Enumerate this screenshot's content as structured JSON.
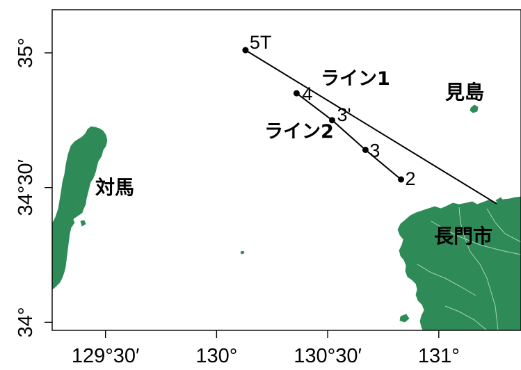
{
  "colors": {
    "land": "#2e8b57",
    "land_border": "#a9d3b6",
    "frame": "#000000",
    "track": "#000000"
  },
  "axes": {
    "x_ticks": [
      {
        "value": 129.5,
        "label": "129°30′"
      },
      {
        "value": 130.0,
        "label": "130°"
      },
      {
        "value": 130.5,
        "label": "130°30′"
      },
      {
        "value": 131.0,
        "label": "131°"
      }
    ],
    "y_ticks": [
      {
        "value": 34.0,
        "label": "34°"
      },
      {
        "value": 34.5,
        "label": "34°30′"
      },
      {
        "value": 35.0,
        "label": "35°"
      }
    ],
    "xlim": [
      129.26,
      131.37
    ],
    "ylim": [
      33.97,
      35.16
    ]
  },
  "places": {
    "tsushima": "対馬",
    "mishima": "見島",
    "nagato": "長門市"
  },
  "stations": [
    {
      "id": "5T",
      "label": "5T",
      "lon": 130.13,
      "lat": 35.01
    },
    {
      "id": "4",
      "label": "4",
      "lon": 130.36,
      "lat": 34.85
    },
    {
      "id": "3p",
      "label": "3'",
      "lon": 130.52,
      "lat": 34.75
    },
    {
      "id": "3",
      "label": "3",
      "lon": 130.67,
      "lat": 34.64
    },
    {
      "id": "2",
      "label": "2",
      "lon": 130.83,
      "lat": 34.53
    }
  ],
  "lines": {
    "line1": {
      "label": "ライン1",
      "from": {
        "lon": 130.13,
        "lat": 35.01
      },
      "to": {
        "lon": 131.26,
        "lat": 34.44
      }
    },
    "line2": {
      "label": "ライン2"
    }
  }
}
